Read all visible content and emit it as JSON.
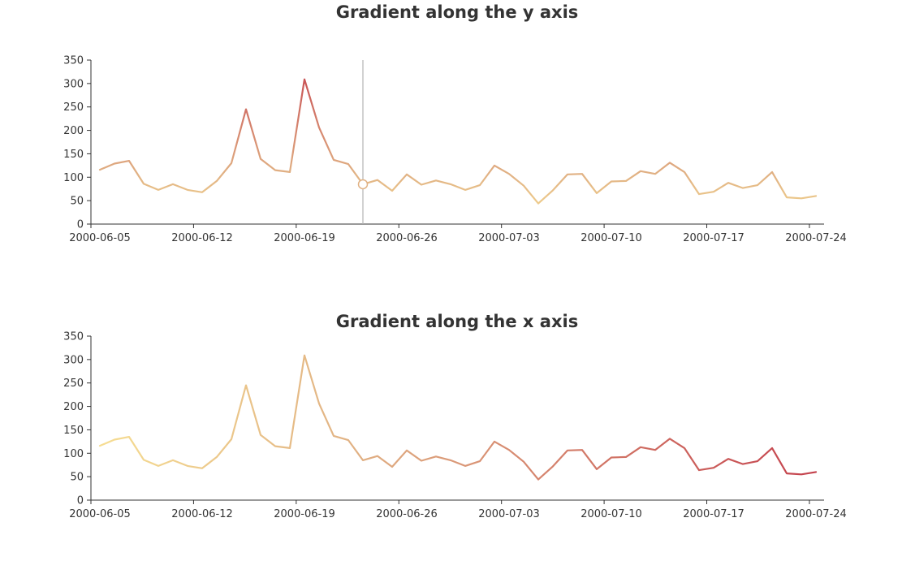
{
  "colors": {
    "gradient_low": "#f6dd92",
    "gradient_mid": "#e1b284",
    "gradient_high": "#c4424d",
    "axis": "#333333",
    "crosshair": "#b5b5b5"
  },
  "chart_data": [
    {
      "type": "line",
      "title": "Gradient along the y axis",
      "gradient_direction": "y",
      "xlabel": "",
      "ylabel": "",
      "ylim": [
        0,
        350
      ],
      "y_ticks": [
        0,
        50,
        100,
        150,
        200,
        250,
        300,
        350
      ],
      "x_tick_labels": [
        "2000-06-05",
        "2000-06-12",
        "2000-06-19",
        "2000-06-26",
        "2000-07-03",
        "2000-07-10",
        "2000-07-17",
        "2000-07-24"
      ],
      "grid": false,
      "hovered_category": "2000-06-23",
      "x": [
        "2000-06-05",
        "2000-06-06",
        "2000-06-07",
        "2000-06-08",
        "2000-06-09",
        "2000-06-10",
        "2000-06-11",
        "2000-06-12",
        "2000-06-13",
        "2000-06-14",
        "2000-06-15",
        "2000-06-16",
        "2000-06-17",
        "2000-06-18",
        "2000-06-19",
        "2000-06-20",
        "2000-06-21",
        "2000-06-22",
        "2000-06-23",
        "2000-06-24",
        "2000-06-25",
        "2000-06-26",
        "2000-06-27",
        "2000-06-28",
        "2000-06-29",
        "2000-06-30",
        "2000-07-01",
        "2000-07-02",
        "2000-07-03",
        "2000-07-04",
        "2000-07-05",
        "2000-07-06",
        "2000-07-07",
        "2000-07-08",
        "2000-07-09",
        "2000-07-10",
        "2000-07-11",
        "2000-07-12",
        "2000-07-13",
        "2000-07-14",
        "2000-07-15",
        "2000-07-16",
        "2000-07-17",
        "2000-07-18",
        "2000-07-19",
        "2000-07-20",
        "2000-07-21",
        "2000-07-22",
        "2000-07-23",
        "2000-07-24"
      ],
      "values": [
        116,
        129,
        135,
        86,
        73,
        85,
        73,
        68,
        92,
        130,
        245,
        139,
        115,
        111,
        309,
        206,
        137,
        128,
        85,
        94,
        71,
        106,
        84,
        93,
        85,
        73,
        83,
        125,
        107,
        82,
        44,
        72,
        106,
        107,
        66,
        91,
        92,
        113,
        107,
        131,
        111,
        64,
        69,
        88,
        77,
        83,
        111,
        57,
        55,
        60
      ]
    },
    {
      "type": "line",
      "title": "Gradient along the x axis",
      "gradient_direction": "x",
      "xlabel": "",
      "ylabel": "",
      "ylim": [
        0,
        350
      ],
      "y_ticks": [
        0,
        50,
        100,
        150,
        200,
        250,
        300,
        350
      ],
      "x_tick_labels": [
        "2000-06-05",
        "2000-06-12",
        "2000-06-19",
        "2000-06-26",
        "2000-07-03",
        "2000-07-10",
        "2000-07-17",
        "2000-07-24"
      ],
      "grid": false,
      "x": [
        "2000-06-05",
        "2000-06-06",
        "2000-06-07",
        "2000-06-08",
        "2000-06-09",
        "2000-06-10",
        "2000-06-11",
        "2000-06-12",
        "2000-06-13",
        "2000-06-14",
        "2000-06-15",
        "2000-06-16",
        "2000-06-17",
        "2000-06-18",
        "2000-06-19",
        "2000-06-20",
        "2000-06-21",
        "2000-06-22",
        "2000-06-23",
        "2000-06-24",
        "2000-06-25",
        "2000-06-26",
        "2000-06-27",
        "2000-06-28",
        "2000-06-29",
        "2000-06-30",
        "2000-07-01",
        "2000-07-02",
        "2000-07-03",
        "2000-07-04",
        "2000-07-05",
        "2000-07-06",
        "2000-07-07",
        "2000-07-08",
        "2000-07-09",
        "2000-07-10",
        "2000-07-11",
        "2000-07-12",
        "2000-07-13",
        "2000-07-14",
        "2000-07-15",
        "2000-07-16",
        "2000-07-17",
        "2000-07-18",
        "2000-07-19",
        "2000-07-20",
        "2000-07-21",
        "2000-07-22",
        "2000-07-23",
        "2000-07-24"
      ],
      "values": [
        116,
        129,
        135,
        86,
        73,
        85,
        73,
        68,
        92,
        130,
        245,
        139,
        115,
        111,
        309,
        206,
        137,
        128,
        85,
        94,
        71,
        106,
        84,
        93,
        85,
        73,
        83,
        125,
        107,
        82,
        44,
        72,
        106,
        107,
        66,
        91,
        92,
        113,
        107,
        131,
        111,
        64,
        69,
        88,
        77,
        83,
        111,
        57,
        55,
        60
      ]
    }
  ]
}
